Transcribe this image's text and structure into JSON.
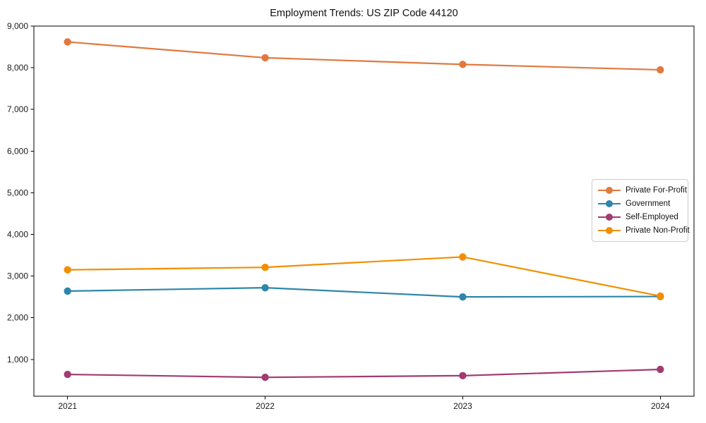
{
  "chart_data": {
    "type": "line",
    "title": "Employment Trends: US ZIP Code 44120",
    "xlabel": "",
    "ylabel": "",
    "categories": [
      "2021",
      "2022",
      "2023",
      "2024"
    ],
    "series": [
      {
        "name": "Private For-Profit",
        "color": "#E1793F",
        "values": [
          8620,
          8240,
          8080,
          7950
        ]
      },
      {
        "name": "Government",
        "color": "#2E86AB",
        "values": [
          2640,
          2720,
          2500,
          2510
        ]
      },
      {
        "name": "Self-Employed",
        "color": "#A23B72",
        "values": [
          640,
          570,
          610,
          760
        ]
      },
      {
        "name": "Private Non-Profit",
        "color": "#F18F01",
        "values": [
          3150,
          3210,
          3460,
          2520
        ]
      }
    ],
    "yticks": [
      {
        "value": 1000,
        "label": "1,000"
      },
      {
        "value": 2000,
        "label": "2,000"
      },
      {
        "value": 3000,
        "label": "3,000"
      },
      {
        "value": 4000,
        "label": "4,000"
      },
      {
        "value": 5000,
        "label": "5,000"
      },
      {
        "value": 6000,
        "label": "6,000"
      },
      {
        "value": 7000,
        "label": "7,000"
      },
      {
        "value": 8000,
        "label": "8,000"
      },
      {
        "value": 9000,
        "label": "9,000"
      }
    ],
    "ylim": [
      117,
      9000
    ],
    "grid": false,
    "legend_position": "center-right",
    "marker": "circle",
    "axis_color": "#000000",
    "tick_label_color": "#1a1a1a"
  }
}
